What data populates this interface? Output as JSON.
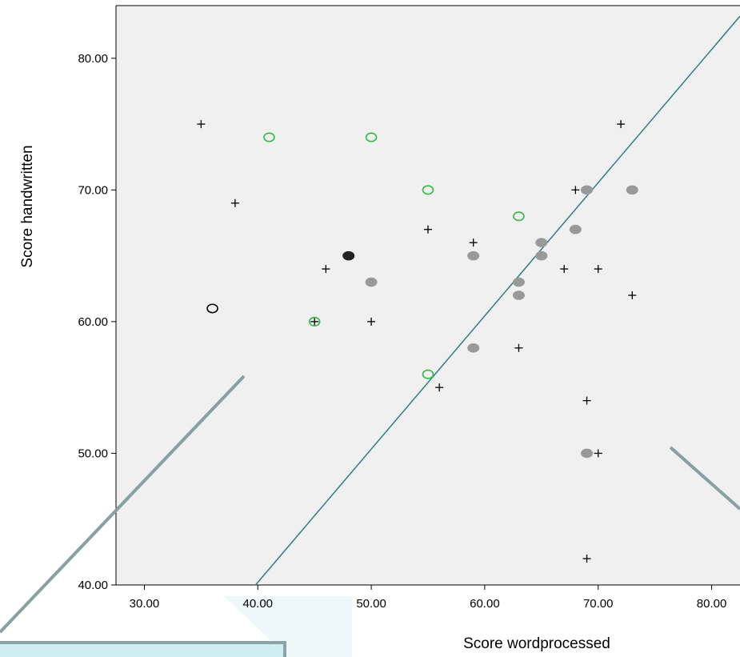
{
  "chart_data": {
    "type": "scatter",
    "title": "",
    "xlabel": "Score wordprocessed",
    "ylabel": "Score handwritten",
    "xlim": [
      27.5,
      82.5
    ],
    "ylim": [
      40,
      84
    ],
    "x_ticks": [
      "30.00",
      "40.00",
      "50.00",
      "60.00",
      "70.00",
      "80.00"
    ],
    "x_tick_values": [
      30,
      40,
      50,
      60,
      70,
      80
    ],
    "y_ticks": [
      "40.00",
      "50.00",
      "60.00",
      "70.00",
      "80.00"
    ],
    "y_tick_values": [
      40,
      50,
      60,
      70,
      80
    ],
    "grid": false,
    "background_color": "#f0f0f0",
    "reference_line": {
      "points": [
        [
          39.8,
          40
        ],
        [
          82.5,
          83.2
        ]
      ],
      "color": "#2e7d86"
    },
    "series": [
      {
        "marker": "plus",
        "color": "#000000",
        "points": [
          [
            35,
            75
          ],
          [
            38,
            69
          ],
          [
            46,
            64
          ],
          [
            45,
            60
          ],
          [
            50,
            60
          ],
          [
            55,
            67
          ],
          [
            59,
            66
          ],
          [
            56,
            55
          ],
          [
            63,
            58
          ],
          [
            67,
            64
          ],
          [
            68,
            70
          ],
          [
            70,
            64
          ],
          [
            72,
            75
          ],
          [
            73,
            62
          ],
          [
            69,
            54
          ],
          [
            70,
            50
          ],
          [
            69,
            42
          ]
        ]
      },
      {
        "marker": "open-circle",
        "color": "#33bb44",
        "points": [
          [
            41,
            74
          ],
          [
            50,
            74
          ],
          [
            55,
            70
          ],
          [
            63,
            68
          ],
          [
            45,
            60
          ],
          [
            55,
            56
          ]
        ]
      },
      {
        "marker": "filled-circle",
        "color": "#999999",
        "points": [
          [
            50,
            63
          ],
          [
            59,
            65
          ],
          [
            59,
            58
          ],
          [
            63,
            63
          ],
          [
            63,
            62
          ],
          [
            65,
            66
          ],
          [
            65,
            65
          ],
          [
            68,
            67
          ],
          [
            69,
            70
          ],
          [
            73,
            70
          ],
          [
            69,
            50
          ]
        ]
      },
      {
        "marker": "filled-circle",
        "color": "#222222",
        "points": [
          [
            48,
            65
          ]
        ]
      },
      {
        "marker": "open-circle",
        "color": "#000000",
        "points": [
          [
            36,
            61
          ]
        ]
      }
    ]
  },
  "decor": {
    "callout_stroke": "#86a0a4",
    "callout_box_fill": "#cfeef0",
    "callout_box_stroke": "#8aa3a7",
    "bg_wedge_fill": "#eef8fa"
  }
}
